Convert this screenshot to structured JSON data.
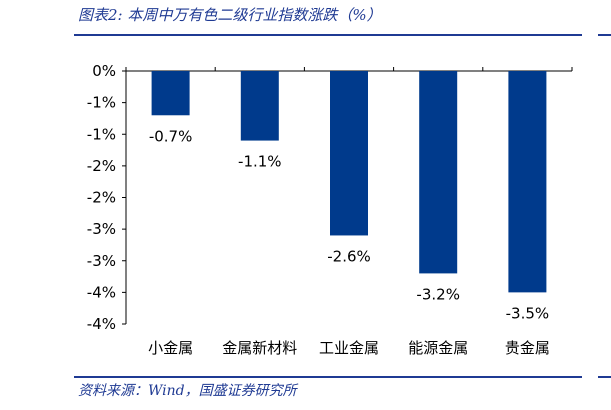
{
  "title": "图表2:  本周中万有色二级行业指数涨跌（%）",
  "source": "资料来源：Wind，国盛证券研究所",
  "colors": {
    "bar": "#003a8c",
    "rule": "#1f3a93",
    "text_accent": "#1f3a93"
  },
  "chart_data": {
    "type": "bar",
    "categories": [
      "小金属",
      "金属新材料",
      "工业金属",
      "能源金属",
      "贵金属"
    ],
    "values": [
      -0.7,
      -1.1,
      -2.6,
      -3.2,
      -3.5
    ],
    "data_labels": [
      "-0.7%",
      "-1.1%",
      "-2.6%",
      "-3.2%",
      "-3.5%"
    ],
    "ylim": [
      -4,
      0
    ],
    "y_tick_values": [
      0,
      -0.5,
      -1,
      -1.5,
      -2,
      -2.5,
      -3,
      -3.5,
      -4
    ],
    "y_tick_labels": [
      "0%",
      "-1%",
      "-1%",
      "-2%",
      "-2%",
      "-3%",
      "-3%",
      "-4%",
      "-4%"
    ],
    "grid": false,
    "legend": "none",
    "xlabel": "",
    "ylabel": ""
  }
}
